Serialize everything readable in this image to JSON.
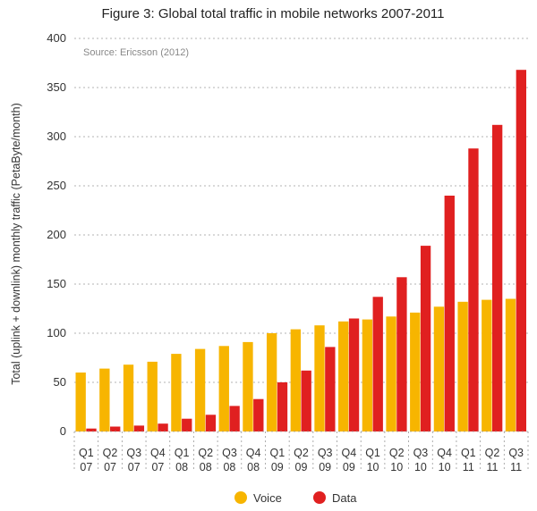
{
  "chart_data": {
    "type": "bar",
    "title": "Figure 3: Global total traffic in mobile networks 2007-2011",
    "source_note": "Source: Ericsson (2012)",
    "ylabel": "Total (uplink + downlink) monthly traffic (PetaByte/month)",
    "xlabel": "",
    "ylim": [
      0,
      400
    ],
    "yticks": [
      0,
      50,
      100,
      150,
      200,
      250,
      300,
      350,
      400
    ],
    "grid": "horizontal dashed",
    "legend_position": "bottom-center",
    "categories": [
      [
        "Q1",
        "07"
      ],
      [
        "Q2",
        "07"
      ],
      [
        "Q3",
        "07"
      ],
      [
        "Q4",
        "07"
      ],
      [
        "Q1",
        "08"
      ],
      [
        "Q2",
        "08"
      ],
      [
        "Q3",
        "08"
      ],
      [
        "Q4",
        "08"
      ],
      [
        "Q1",
        "09"
      ],
      [
        "Q2",
        "09"
      ],
      [
        "Q3",
        "09"
      ],
      [
        "Q4",
        "09"
      ],
      [
        "Q1",
        "10"
      ],
      [
        "Q2",
        "10"
      ],
      [
        "Q3",
        "10"
      ],
      [
        "Q4",
        "10"
      ],
      [
        "Q1",
        "11"
      ],
      [
        "Q2",
        "11"
      ],
      [
        "Q3",
        "11"
      ]
    ],
    "series": [
      {
        "name": "Voice",
        "color": "#F7B500",
        "values": [
          60,
          64,
          68,
          71,
          79,
          84,
          87,
          91,
          100,
          104,
          108,
          112,
          114,
          117,
          121,
          127,
          132,
          134,
          135
        ]
      },
      {
        "name": "Data",
        "color": "#E02020",
        "values": [
          3,
          5,
          6,
          8,
          13,
          17,
          26,
          33,
          50,
          62,
          86,
          115,
          137,
          157,
          189,
          240,
          288,
          312,
          368
        ]
      }
    ]
  }
}
